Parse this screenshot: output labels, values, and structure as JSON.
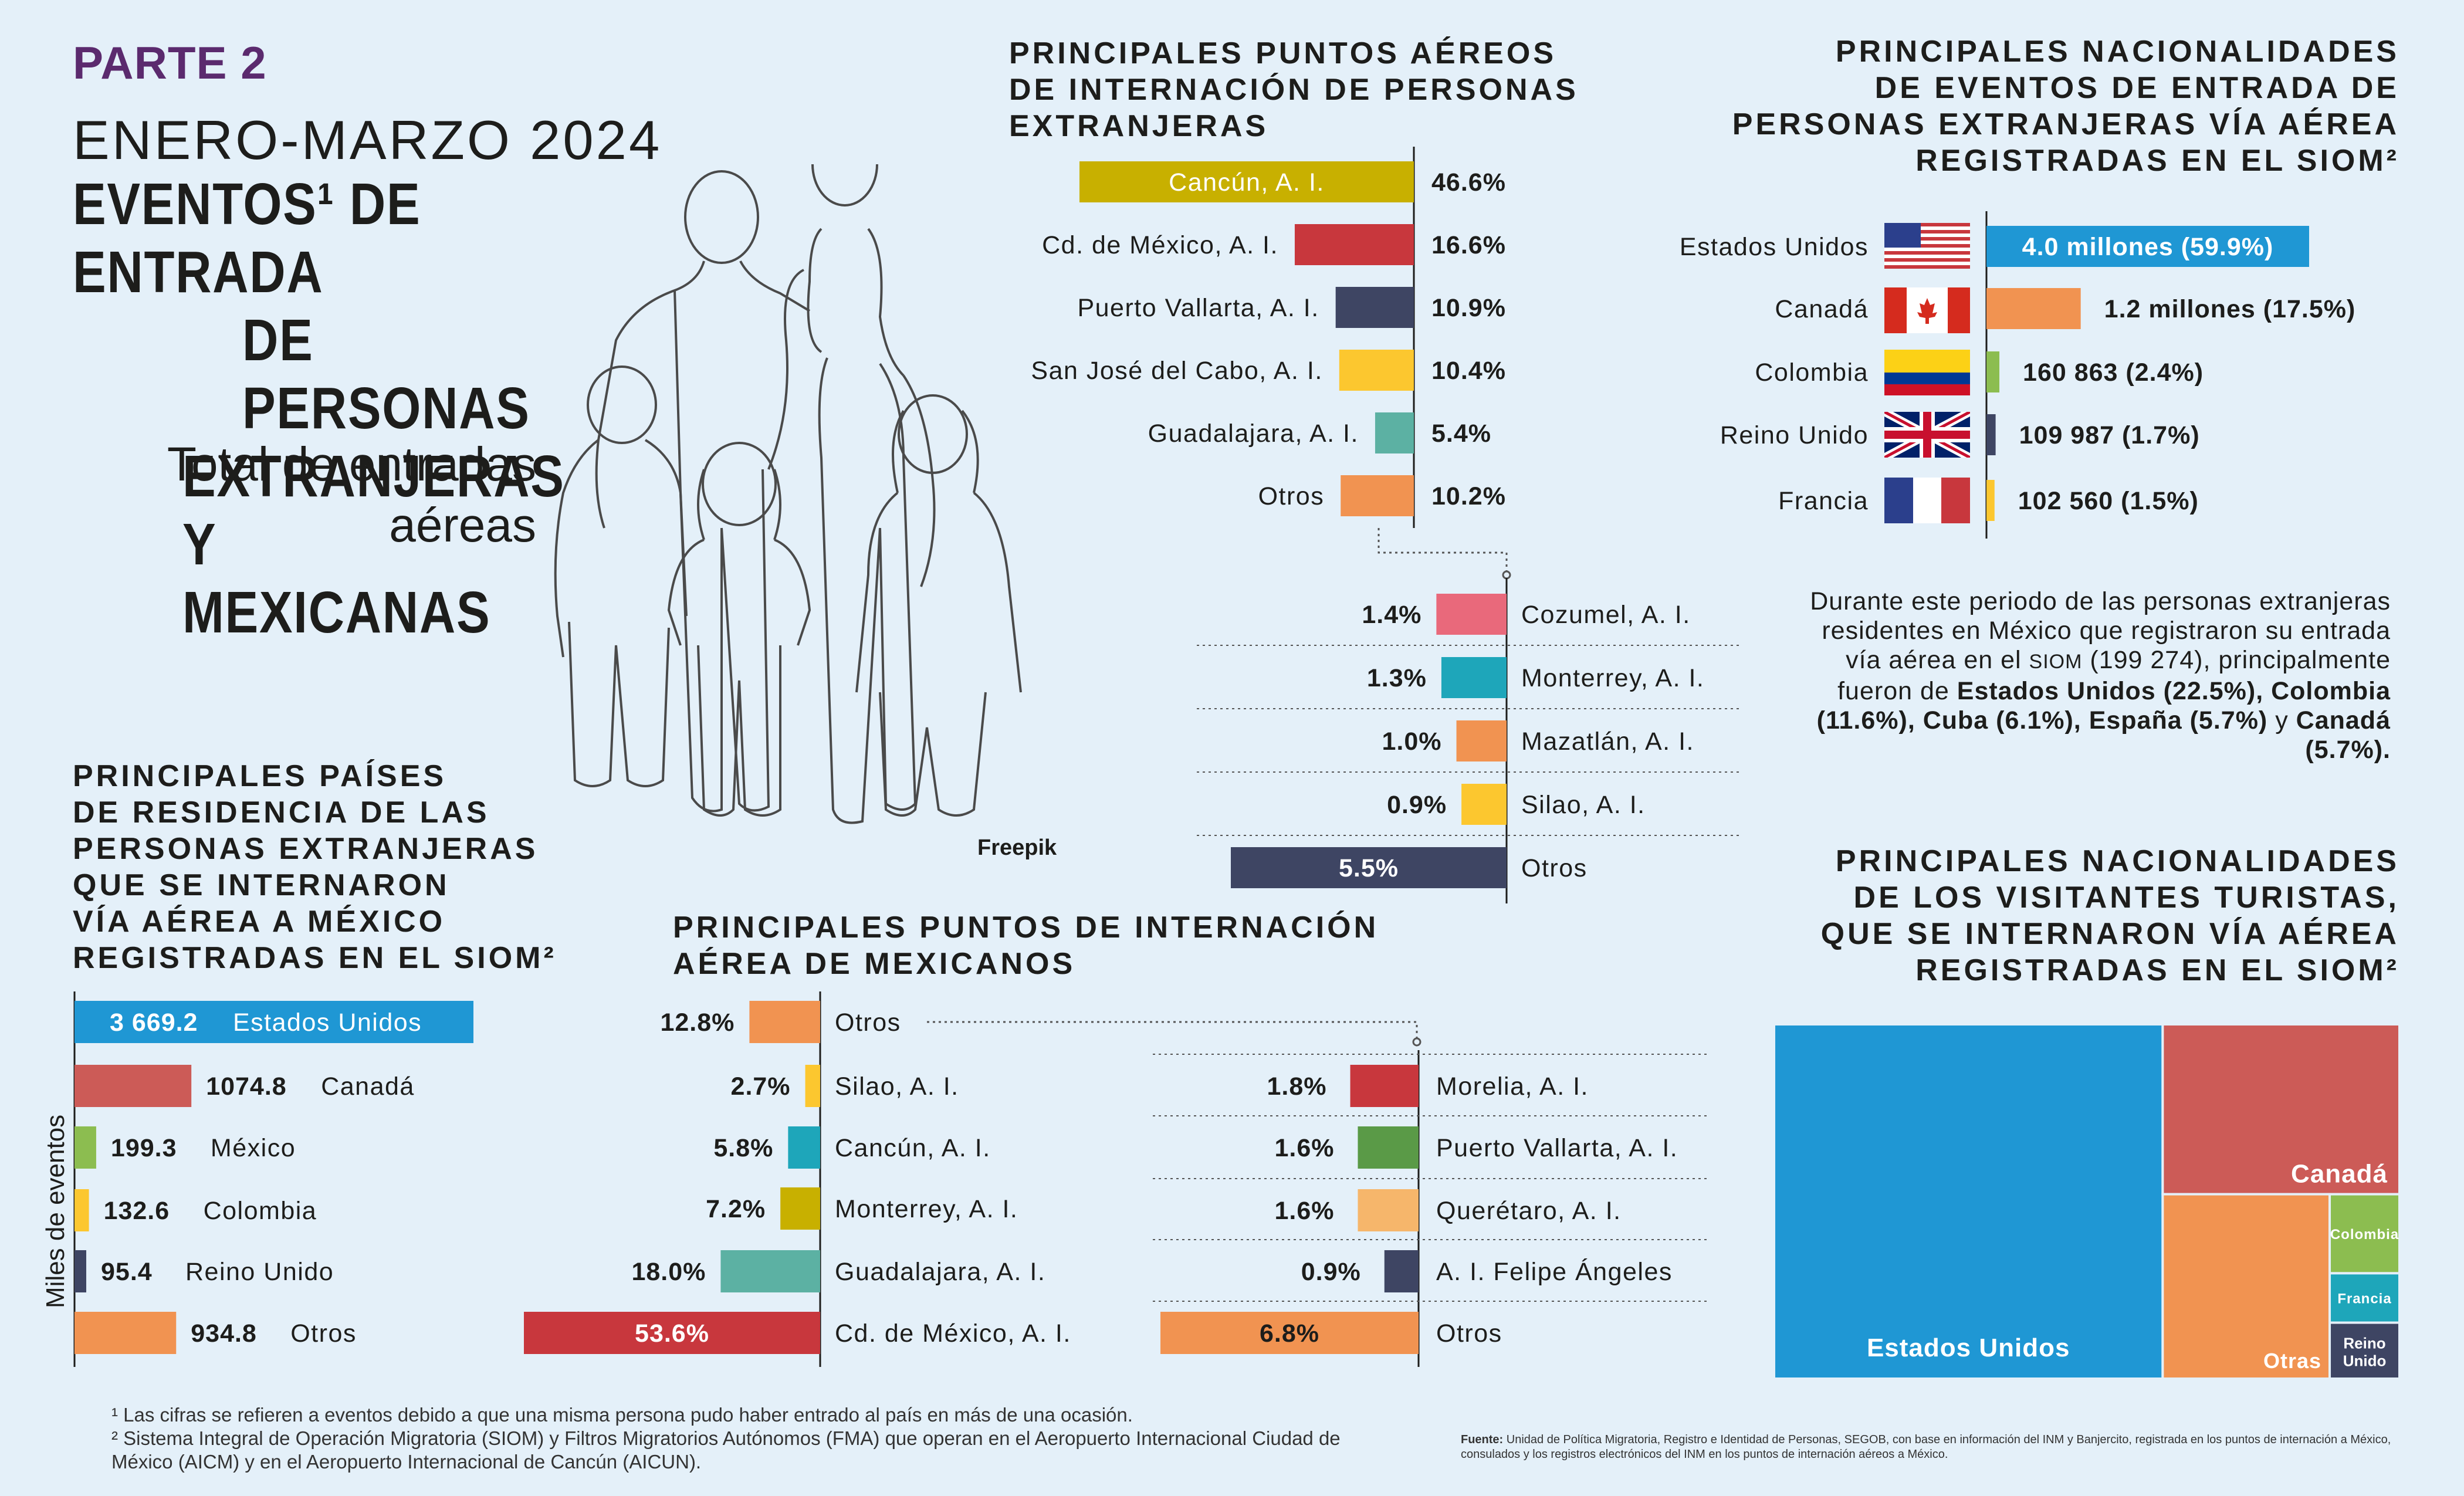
{
  "header": {
    "part": "PARTE 2",
    "period": "ENERO-MARZO 2024",
    "title_lines": [
      "EVENTOS¹ DE ENTRADA",
      "DE PERSONAS",
      "EXTRANJERAS",
      "Y MEXICANAS"
    ],
    "subtitle_lines": [
      "Total de entradas",
      "aéreas"
    ],
    "image_credit": "Freepik"
  },
  "colors": {
    "blue": "#1f97d4",
    "red": "#c8373d",
    "navy": "#3e4563",
    "yellow": "#fcc72f",
    "teal": "#5cb1a3",
    "orange": "#f19351",
    "pink": "#e9697b",
    "cyan": "#1ea6ba",
    "olive": "#c8b000",
    "green": "#8cbd50",
    "darkgreen": "#5a9a47",
    "peach": "#f6b66b",
    "salmon": "#cc5b57"
  },
  "sections": {
    "airports_foreign_title": [
      "PRINCIPALES PUNTOS AÉREOS",
      "DE INTERNACIÓN DE PERSONAS",
      "EXTRANJERAS"
    ],
    "nationalities_title": [
      "PRINCIPALES NACIONALIDADES",
      "DE EVENTOS DE ENTRADA DE",
      "PERSONAS EXTRANJERAS VÍA AÉREA",
      "REGISTRADAS EN EL SIOM²"
    ],
    "residence_title": [
      "PRINCIPALES PAÍSES",
      "DE RESIDENCIA DE LAS",
      "PERSONAS EXTRANJERAS",
      "QUE SE INTERNARON",
      "VÍA AÉREA A MÉXICO",
      "REGISTRADAS EN EL SIOM²"
    ],
    "airports_mexican_title": [
      "PRINCIPALES PUNTOS DE INTERNACIÓN",
      "AÉREA DE MEXICANOS"
    ],
    "tourists_title": [
      "PRINCIPALES NACIONALIDADES",
      "DE LOS VISITANTES TURISTAS,",
      "QUE SE INTERNARON VÍA AÉREA",
      "REGISTRADAS EN EL SIOM²"
    ]
  },
  "paragraph": {
    "p1": "Durante este periodo de las personas extranjeras residentes en México que registraron su entrada vía aérea en el ",
    "siom": "SIOM",
    "p2": " (199 274), principalmente fueron de ",
    "b1": "Estados Unidos (22.5%), Colombia (11.6%), Cuba (6.1%), España (5.7%)",
    "p3": " y ",
    "b2": "Canadá (5.7%)."
  },
  "footnotes": {
    "note1": "¹ Las cifras se refieren a eventos debido a que una misma persona pudo haber entrado al país en más de una ocasión.",
    "note2": "² Sistema Integral de Operación Migratoria (SIOM) y Filtros Migratorios Autónomos (FMA) que operan en el Aeropuerto Internacional Ciudad de México (AICM) y en el Aeropuerto Internacional de Cancún (AICUN).",
    "source_label": "Fuente:",
    "source": "Unidad de Política Migratoria, Registro e Identidad de Personas, SEGOB, con base en información del INM y Banjercito, registrada en los puntos de internación a México, consulados y los registros electrónicos del INM en los puntos de internación aéreos a México."
  },
  "chart_data": [
    {
      "id": "foreign_airports_main",
      "type": "bar",
      "categories": [
        "Cancún, A. I.",
        "Cd. de México, A. I.",
        "Puerto Vallarta, A. I.",
        "San José del Cabo, A. I.",
        "Guadalajara, A. I.",
        "Otros"
      ],
      "values": [
        46.6,
        16.6,
        10.9,
        10.4,
        5.4,
        10.2
      ],
      "labels": [
        "46.6%",
        "16.6%",
        "10.9%",
        "10.4%",
        "5.4%",
        "10.2%"
      ],
      "colors": [
        "#c8b000",
        "#c8373d",
        "#3e4563",
        "#fcc72f",
        "#5cb1a3",
        "#f19351"
      ]
    },
    {
      "id": "foreign_airports_otros",
      "type": "bar",
      "categories": [
        "Cozumel, A. I.",
        "Monterrey, A. I.",
        "Mazatlán, A. I.",
        "Silao, A. I.",
        "Otros"
      ],
      "values": [
        1.4,
        1.3,
        1.0,
        0.9,
        5.5
      ],
      "labels": [
        "1.4%",
        "1.3%",
        "1.0%",
        "0.9%",
        "5.5%"
      ],
      "colors": [
        "#e9697b",
        "#1ea6ba",
        "#f19351",
        "#fcc72f",
        "#3e4563"
      ]
    },
    {
      "id": "nationalities",
      "type": "bar",
      "categories": [
        "Estados Unidos",
        "Canadá",
        "Colombia",
        "Reino Unido",
        "Francia"
      ],
      "values": [
        59.9,
        17.5,
        2.4,
        1.7,
        1.5
      ],
      "labels": [
        "4.0 millones  (59.9%)",
        "1.2 millones  (17.5%)",
        "160 863  (2.4%)",
        "109 987   (1.7%)",
        "102 560   (1.5%)"
      ],
      "colors": [
        "#1f97d4",
        "#f19351",
        "#8cbd50",
        "#3e4563",
        "#fcc72f"
      ]
    },
    {
      "id": "residence",
      "type": "bar",
      "ylabel": "Miles de eventos",
      "categories": [
        "Estados Unidos",
        "Canadá",
        "México",
        "Colombia",
        "Reino Unido",
        "Otros"
      ],
      "values": [
        3669.2,
        1074.8,
        199.3,
        132.6,
        95.4,
        934.8
      ],
      "labels": [
        "3 669.2",
        "1074.8",
        "199.3",
        "132.6",
        "95.4",
        "934.8"
      ],
      "colors": [
        "#1f97d4",
        "#cc5b57",
        "#8cbd50",
        "#fcc72f",
        "#3e4563",
        "#f19351"
      ]
    },
    {
      "id": "mexican_airports_main",
      "type": "bar",
      "categories": [
        "Otros",
        "Silao, A. I.",
        "Cancún, A. I.",
        "Monterrey, A. I.",
        "Guadalajara, A. I.",
        "Cd. de México, A. I."
      ],
      "values": [
        12.8,
        2.7,
        5.8,
        7.2,
        18.0,
        53.6
      ],
      "labels": [
        "12.8%",
        "2.7%",
        "5.8%",
        "7.2%",
        "18.0%",
        "53.6%"
      ],
      "colors": [
        "#f19351",
        "#fcc72f",
        "#1ea6ba",
        "#c8b000",
        "#5cb1a3",
        "#c8373d"
      ]
    },
    {
      "id": "mexican_airports_otros",
      "type": "bar",
      "categories": [
        "Morelia, A. I.",
        "Puerto Vallarta, A. I.",
        "Querétaro, A. I.",
        "A. I. Felipe Ángeles",
        "Otros"
      ],
      "values": [
        1.8,
        1.6,
        1.6,
        0.9,
        6.8
      ],
      "labels": [
        "1.8%",
        "1.6%",
        "1.6%",
        "0.9%",
        "6.8%"
      ],
      "colors": [
        "#c8373d",
        "#5a9a47",
        "#f6b66b",
        "#3e4563",
        "#f19351"
      ]
    },
    {
      "id": "tourists_treemap",
      "type": "treemap",
      "categories": [
        "Estados Unidos",
        "Canadá",
        "Otras",
        "Colombia",
        "Francia",
        "Reino Unido"
      ],
      "values": [
        59.9,
        17.5,
        13.4,
        2.4,
        1.5,
        1.7
      ],
      "colors": [
        "#1f97d4",
        "#cc5b57",
        "#f19351",
        "#8cbd50",
        "#1ea6ba",
        "#3e4563"
      ]
    }
  ]
}
